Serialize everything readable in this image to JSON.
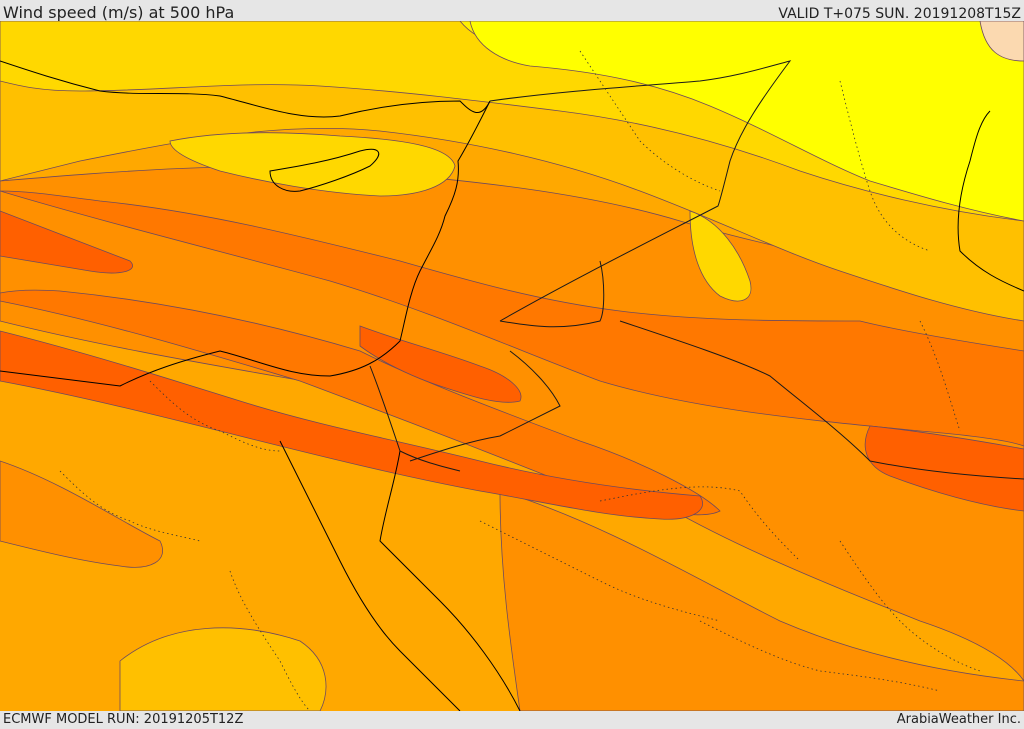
{
  "header": {
    "title": "Wind speed (m/s) at 500 hPa",
    "valid_time": "VALID T+075 SUN. 20191208T15Z"
  },
  "footer": {
    "model_run": "ECMWF MODEL RUN: 20191205T12Z",
    "credit": "ArabiaWeather Inc."
  },
  "map": {
    "field": "wind speed at 500 hPa",
    "colors": {
      "band_very_light": "#fbd9b0",
      "band_yellow": "#ffff00",
      "band_light_yellow": "#fff000",
      "band_gold": "#ffd800",
      "band_amber": "#ffc000",
      "band_orange_light": "#ffa800",
      "band_orange": "#ff9000",
      "band_dark_orange": "#ff7800",
      "band_red_orange": "#ff6000",
      "contour_line": "#6e4a5e",
      "coastline": "#000000",
      "border": "#1a1a1a"
    }
  }
}
